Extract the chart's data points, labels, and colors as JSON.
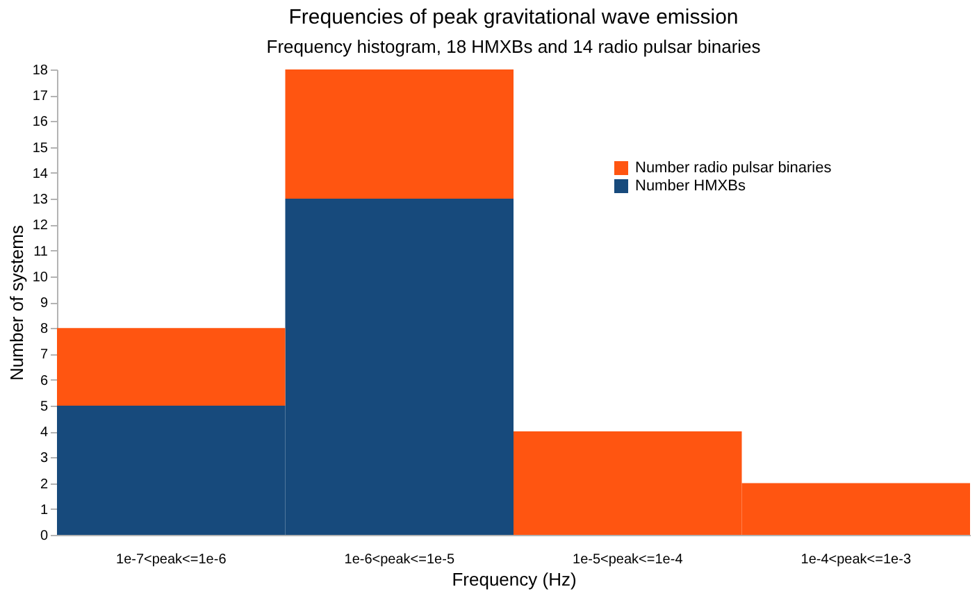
{
  "chart_data": {
    "type": "bar",
    "title": "Frequencies of peak gravitational wave emission",
    "subtitle": "Frequency histogram, 18 HMXBs and 14 radio pulsar binaries",
    "xlabel": "Frequency (Hz)",
    "ylabel": "Number of systems",
    "categories": [
      "1e-7<peak<=1e-6",
      "1e-6<peak<=1e-5",
      "1e-5<peak<=1e-4",
      "1e-4<peak<=1e-3"
    ],
    "series": [
      {
        "name": "Number HMXBs",
        "color": "#174a7c",
        "values": [
          5,
          13,
          0,
          0
        ]
      },
      {
        "name": "Number radio pulsar binaries",
        "color": "#ff5511",
        "values": [
          3,
          5,
          4,
          2
        ]
      }
    ],
    "stacked": true,
    "ylim": [
      0,
      18
    ],
    "yticks": [
      0,
      1,
      2,
      3,
      4,
      5,
      6,
      7,
      8,
      9,
      10,
      11,
      12,
      13,
      14,
      15,
      16,
      17,
      18
    ],
    "grid": false,
    "legend": "top right"
  }
}
